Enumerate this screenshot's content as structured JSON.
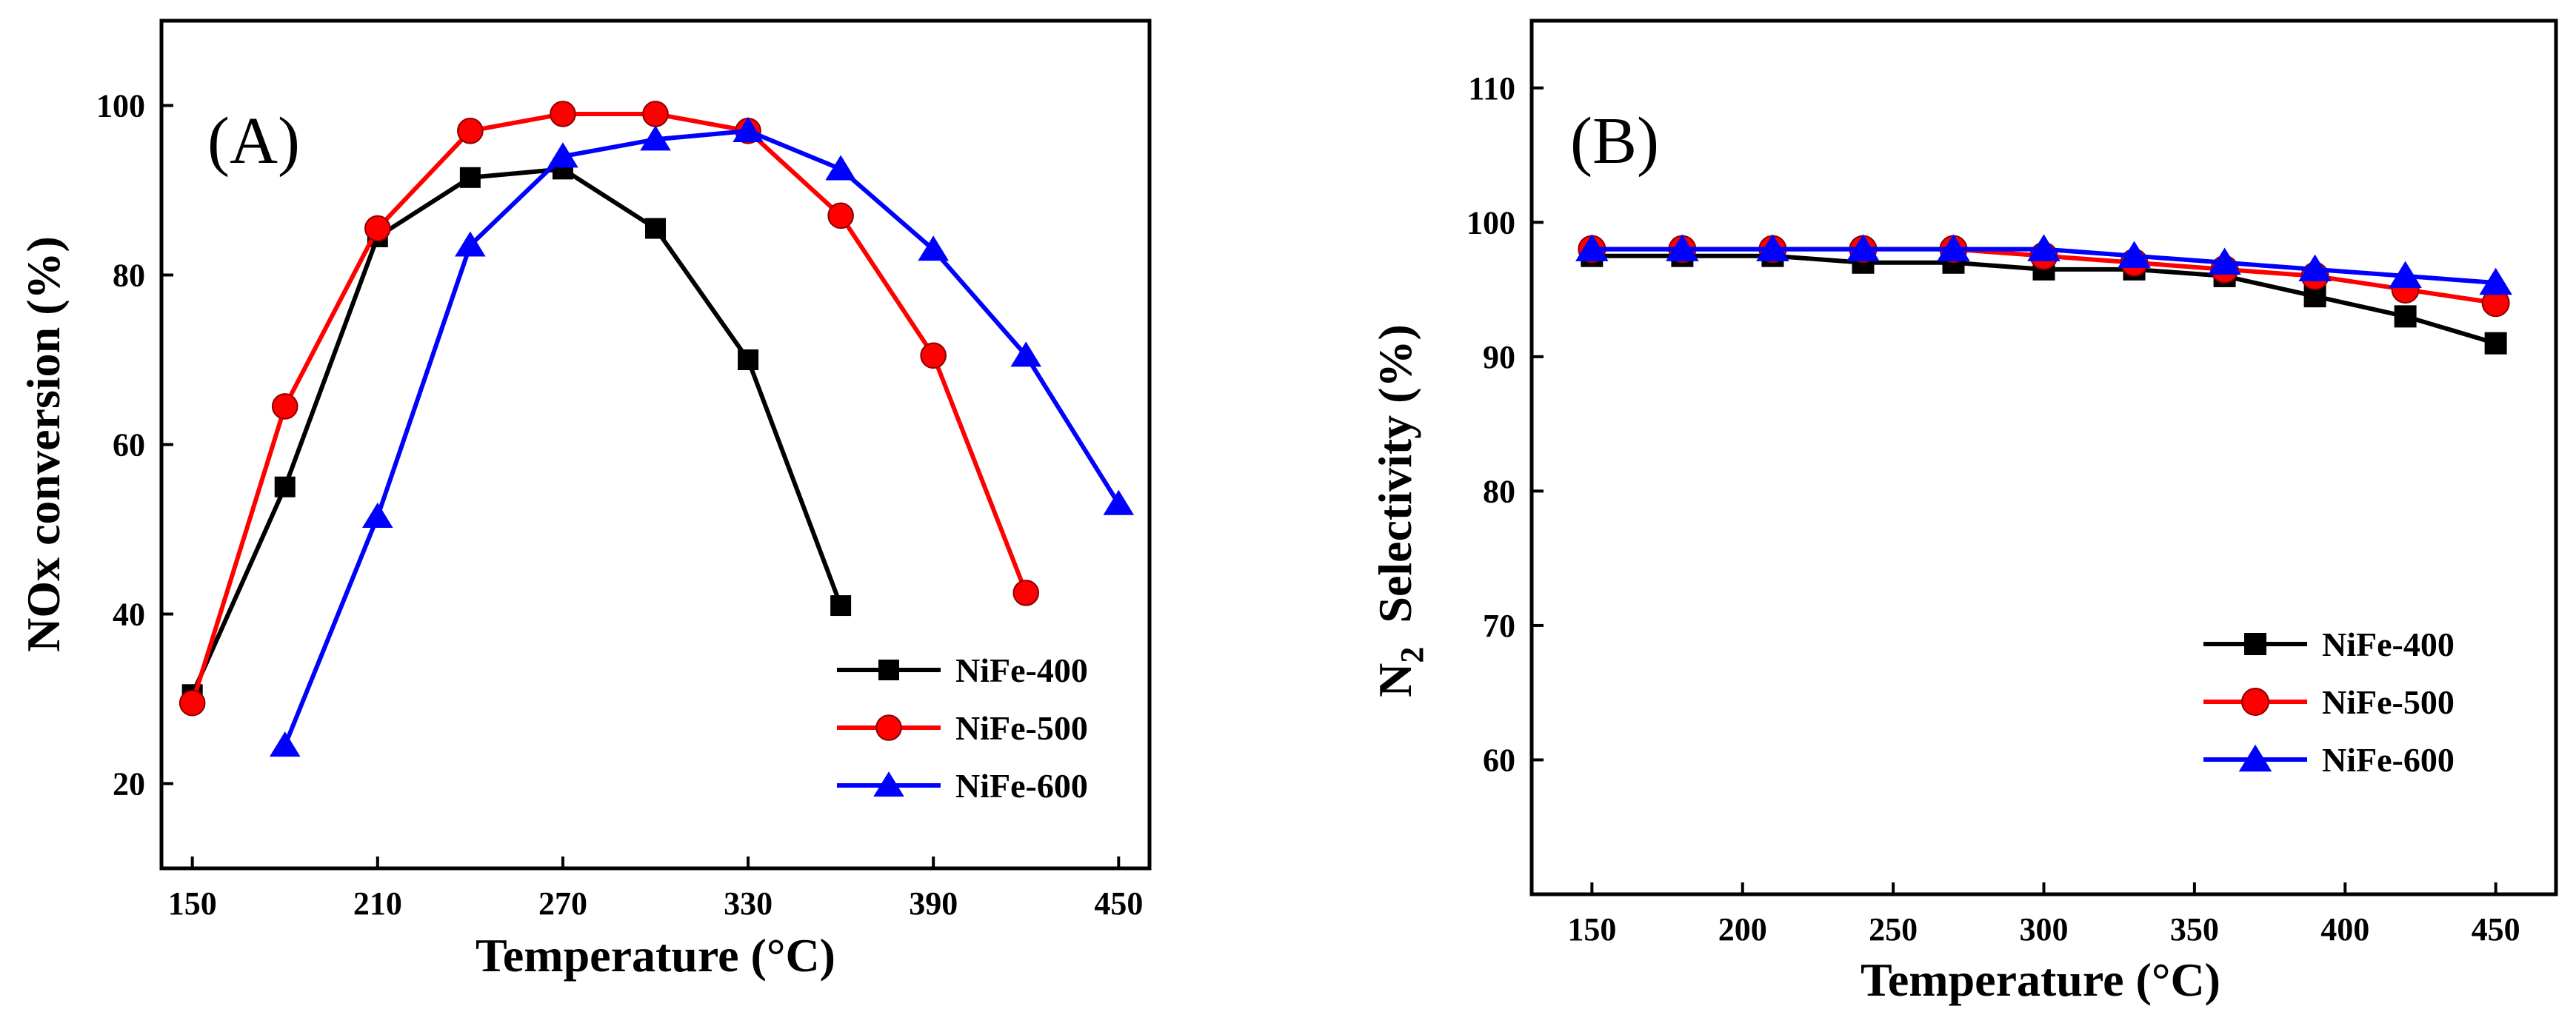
{
  "chart_data": [
    {
      "type": "line",
      "panel_label": "(A)",
      "xlabel": "Temperature (°C)",
      "ylabel": "NOx  conversion (%)",
      "xlim": [
        140,
        460
      ],
      "ylim": [
        10,
        110
      ],
      "xticks": [
        150,
        210,
        270,
        330,
        390,
        450
      ],
      "yticks": [
        20,
        40,
        60,
        80,
        100
      ],
      "legend_position": "lower-right",
      "series": [
        {
          "name": "NiFe-400",
          "color": "#000000",
          "marker": "square",
          "x": [
            150,
            180,
            210,
            240,
            270,
            300,
            330,
            360
          ],
          "y": [
            30.5,
            55,
            84.5,
            91.5,
            92.5,
            85.5,
            70,
            41
          ]
        },
        {
          "name": "NiFe-500",
          "color": "#ff0000",
          "marker": "circle",
          "x": [
            150,
            180,
            210,
            240,
            270,
            300,
            330,
            360,
            390,
            420
          ],
          "y": [
            29.5,
            64.5,
            85.5,
            97,
            99,
            99,
            97,
            87,
            70.5,
            42.5
          ]
        },
        {
          "name": "NiFe-600",
          "color": "#0000ff",
          "marker": "triangle",
          "x": [
            180,
            210,
            240,
            270,
            300,
            330,
            360,
            390,
            420,
            450
          ],
          "y": [
            24.5,
            51.5,
            83.5,
            94,
            96,
            97,
            92.5,
            83,
            70.5,
            53
          ]
        }
      ]
    },
    {
      "type": "line",
      "panel_label": "(B)",
      "xlabel": "Temperature (°C)",
      "ylabel_main": "N",
      "ylabel_sub": "2",
      "ylabel_rest": "  Selectivity (%)",
      "xlim": [
        130,
        470
      ],
      "ylim": [
        50,
        115
      ],
      "xticks": [
        150,
        200,
        250,
        300,
        350,
        400,
        450
      ],
      "yticks": [
        60,
        70,
        80,
        90,
        100,
        110
      ],
      "legend_position": "lower-right",
      "series": [
        {
          "name": "NiFe-400",
          "color": "#000000",
          "marker": "square",
          "x": [
            150,
            180,
            210,
            240,
            270,
            300,
            330,
            360,
            390,
            420,
            450
          ],
          "y": [
            97.5,
            97.5,
            97.5,
            97,
            97,
            96.5,
            96.5,
            96,
            94.5,
            93,
            91
          ]
        },
        {
          "name": "NiFe-500",
          "color": "#ff0000",
          "marker": "circle",
          "x": [
            150,
            180,
            210,
            240,
            270,
            300,
            330,
            360,
            390,
            420,
            450
          ],
          "y": [
            98,
            98,
            98,
            98,
            98,
            97.5,
            97,
            96.5,
            96,
            95,
            94
          ]
        },
        {
          "name": "NiFe-600",
          "color": "#0000ff",
          "marker": "triangle",
          "x": [
            150,
            180,
            210,
            240,
            270,
            300,
            330,
            360,
            390,
            420,
            450
          ],
          "y": [
            98,
            98,
            98,
            98,
            98,
            98,
            97.5,
            97,
            96.5,
            96,
            95.5
          ]
        }
      ]
    }
  ]
}
